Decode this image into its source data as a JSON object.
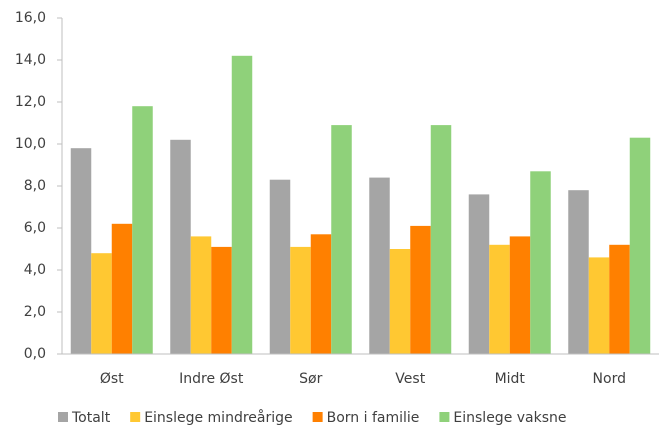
{
  "chart_data": {
    "type": "bar",
    "categories": [
      "Øst",
      "Indre Øst",
      "Sør",
      "Vest",
      "Midt",
      "Nord"
    ],
    "series": [
      {
        "name": "Totalt",
        "color": "#a5a5a5",
        "values": [
          9.8,
          10.2,
          8.3,
          8.4,
          7.6,
          7.8
        ]
      },
      {
        "name": "Einslege mindreårige",
        "color": "#ffc832",
        "values": [
          4.8,
          5.6,
          5.1,
          5.0,
          5.2,
          4.6
        ]
      },
      {
        "name": "Born i familie",
        "color": "#ff8000",
        "values": [
          6.2,
          5.1,
          5.7,
          6.1,
          5.6,
          5.2
        ]
      },
      {
        "name": "Einslege vaksne",
        "color": "#8fd17a",
        "values": [
          11.8,
          14.2,
          10.9,
          10.9,
          8.7,
          10.3
        ]
      }
    ],
    "ylim": [
      0,
      16
    ],
    "yticks": [
      {
        "value": 0,
        "label": "0,0"
      },
      {
        "value": 2,
        "label": "2,0"
      },
      {
        "value": 4,
        "label": "4,0"
      },
      {
        "value": 6,
        "label": "6,0"
      },
      {
        "value": 8,
        "label": "8,0"
      },
      {
        "value": 10,
        "label": "10,0"
      },
      {
        "value": 12,
        "label": "12,0"
      },
      {
        "value": 14,
        "label": "14,0"
      },
      {
        "value": 16,
        "label": "16,0"
      }
    ],
    "legend": "bottom"
  }
}
